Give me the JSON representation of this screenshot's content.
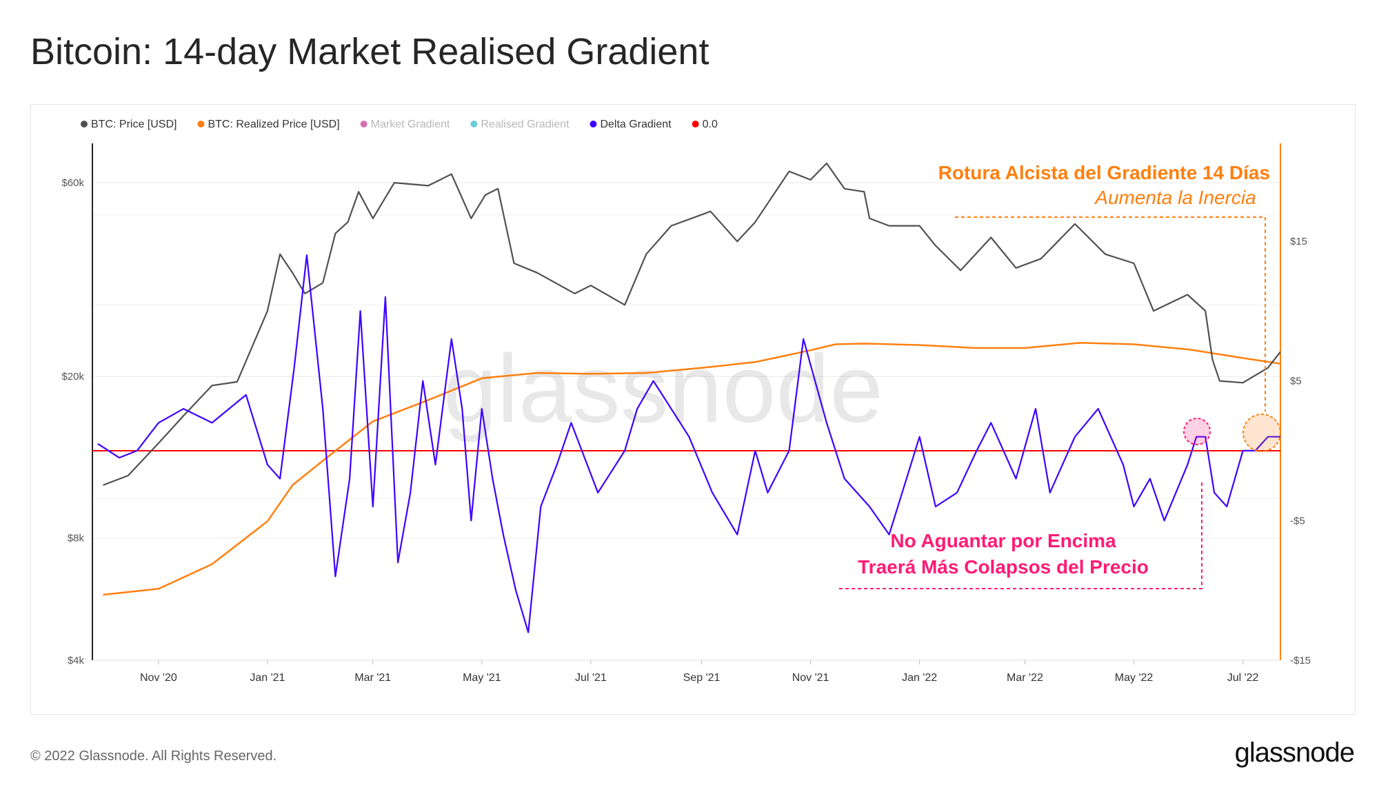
{
  "page": {
    "title": "Bitcoin: 14-day Market Realised Gradient",
    "copyright": "© 2022 Glassnode. All Rights Reserved.",
    "logo": "glassnode",
    "watermark": "glassnode"
  },
  "annotations": {
    "bullish_title": "Rotura Alcista del Gradiente 14 Días",
    "bullish_subtitle": "Aumenta la Inercia",
    "bearish_line1": "No Aguantar por Encima",
    "bearish_line2": "Traerá Más Colapsos del Precio"
  },
  "colors": {
    "price": "#505050",
    "realized": "#ff7f0e",
    "market_gradient": "#d66fae",
    "realised_gradient": "#6ecbd9",
    "delta": "#3d00ff",
    "zero": "#ff0000",
    "annotation_orange": "#ff7f0e",
    "annotation_pink": "#ff1a75"
  },
  "chart_data": {
    "type": "line",
    "title": "Bitcoin: 14-day Market Realised Gradient",
    "legend_position": "top-left",
    "legend": [
      {
        "label": "BTC: Price [USD]",
        "color": "#505050",
        "muted": false
      },
      {
        "label": "BTC: Realized Price [USD]",
        "color": "#ff7f0e",
        "muted": false
      },
      {
        "label": "Market Gradient",
        "color": "#d66fae",
        "muted": true
      },
      {
        "label": "Realised Gradient",
        "color": "#6ecbd9",
        "muted": true
      },
      {
        "label": "Delta Gradient",
        "color": "#3d00ff",
        "muted": false
      },
      {
        "label": "0.0",
        "color": "#ff0000",
        "muted": false
      }
    ],
    "x_ticks": [
      "Nov '20",
      "Jan '21",
      "Mar '21",
      "May '21",
      "Jul '21",
      "Sep '21",
      "Nov '21",
      "Jan '22",
      "Mar '22",
      "May '22",
      "Jul '22"
    ],
    "x_range": [
      "2020-09-25",
      "2022-07-22"
    ],
    "left_axis": {
      "scale": "log",
      "range": [
        4000,
        75000
      ],
      "ticks": [
        {
          "label": "$4k",
          "value": 4000
        },
        {
          "label": "$8k",
          "value": 8000
        },
        {
          "label": "$20k",
          "value": 20000
        },
        {
          "label": "$60k",
          "value": 60000
        }
      ]
    },
    "right_axis": {
      "scale": "linear",
      "range": [
        -15,
        22
      ],
      "ticks": [
        {
          "label": "$15",
          "value": 15
        },
        {
          "label": "$5",
          "value": 5
        },
        {
          "label": "-$5",
          "value": -5
        },
        {
          "label": "-$15",
          "value": -15
        }
      ]
    },
    "grid": true,
    "series": [
      {
        "name": "BTC: Price [USD]",
        "axis": "left",
        "x": [
          "2020-10-01",
          "2020-10-15",
          "2020-11-01",
          "2020-11-15",
          "2020-12-01",
          "2020-12-15",
          "2021-01-01",
          "2021-01-08",
          "2021-01-15",
          "2021-01-22",
          "2021-02-01",
          "2021-02-08",
          "2021-02-15",
          "2021-02-21",
          "2021-03-01",
          "2021-03-13",
          "2021-04-01",
          "2021-04-14",
          "2021-04-25",
          "2021-05-03",
          "2021-05-10",
          "2021-05-19",
          "2021-06-01",
          "2021-06-22",
          "2021-07-01",
          "2021-07-20",
          "2021-08-01",
          "2021-08-15",
          "2021-09-06",
          "2021-09-21",
          "2021-10-01",
          "2021-10-20",
          "2021-11-01",
          "2021-11-10",
          "2021-11-20",
          "2021-12-01",
          "2021-12-04",
          "2021-12-15",
          "2022-01-01",
          "2022-01-10",
          "2022-01-24",
          "2022-02-10",
          "2022-02-24",
          "2022-03-10",
          "2022-03-29",
          "2022-04-15",
          "2022-05-01",
          "2022-05-12",
          "2022-05-31",
          "2022-06-10",
          "2022-06-14",
          "2022-06-18",
          "2022-07-01",
          "2022-07-15",
          "2022-07-22"
        ],
        "values": [
          10800,
          11400,
          13700,
          16000,
          19000,
          19400,
          29000,
          40000,
          36000,
          32000,
          34000,
          45000,
          48000,
          57000,
          49000,
          60000,
          59000,
          63000,
          49000,
          56000,
          58000,
          38000,
          36000,
          32000,
          33500,
          30000,
          40000,
          47000,
          51000,
          43000,
          48000,
          64000,
          61000,
          67000,
          58000,
          57000,
          49000,
          47000,
          47000,
          42000,
          36500,
          44000,
          37000,
          39000,
          47500,
          40000,
          38000,
          29000,
          31800,
          29000,
          22000,
          19500,
          19300,
          21000,
          23000
        ]
      },
      {
        "name": "BTC: Realized Price [USD]",
        "axis": "left",
        "x": [
          "2020-10-01",
          "2020-11-01",
          "2020-12-01",
          "2021-01-01",
          "2021-01-15",
          "2021-02-01",
          "2021-03-01",
          "2021-04-01",
          "2021-05-01",
          "2021-06-01",
          "2021-07-01",
          "2021-08-01",
          "2021-09-01",
          "2021-10-01",
          "2021-11-01",
          "2021-11-15",
          "2021-12-01",
          "2022-01-01",
          "2022-02-01",
          "2022-03-01",
          "2022-04-01",
          "2022-05-01",
          "2022-06-01",
          "2022-07-01",
          "2022-07-22"
        ],
        "values": [
          5800,
          6000,
          6900,
          8800,
          10800,
          12400,
          15500,
          17500,
          19800,
          20400,
          20300,
          20400,
          21000,
          21700,
          23200,
          24000,
          24100,
          23900,
          23500,
          23500,
          24200,
          24000,
          23300,
          22200,
          21500
        ]
      },
      {
        "name": "Delta Gradient",
        "axis": "right",
        "x": [
          "2020-09-28",
          "2020-10-10",
          "2020-10-20",
          "2020-11-01",
          "2020-11-15",
          "2020-12-01",
          "2020-12-20",
          "2021-01-01",
          "2021-01-08",
          "2021-01-16",
          "2021-01-23",
          "2021-02-01",
          "2021-02-08",
          "2021-02-16",
          "2021-02-22",
          "2021-03-01",
          "2021-03-08",
          "2021-03-15",
          "2021-03-22",
          "2021-03-29",
          "2021-04-05",
          "2021-04-14",
          "2021-04-20",
          "2021-04-25",
          "2021-05-01",
          "2021-05-07",
          "2021-05-13",
          "2021-05-20",
          "2021-05-27",
          "2021-06-03",
          "2021-06-12",
          "2021-06-20",
          "2021-06-26",
          "2021-07-05",
          "2021-07-20",
          "2021-07-27",
          "2021-08-05",
          "2021-08-15",
          "2021-08-25",
          "2021-09-07",
          "2021-09-21",
          "2021-10-01",
          "2021-10-08",
          "2021-10-20",
          "2021-10-28",
          "2021-11-10",
          "2021-11-20",
          "2021-12-04",
          "2021-12-15",
          "2022-01-01",
          "2022-01-10",
          "2022-01-22",
          "2022-02-02",
          "2022-02-10",
          "2022-02-24",
          "2022-03-07",
          "2022-03-15",
          "2022-03-29",
          "2022-04-11",
          "2022-04-25",
          "2022-05-01",
          "2022-05-10",
          "2022-05-18",
          "2022-05-31",
          "2022-06-05",
          "2022-06-10",
          "2022-06-15",
          "2022-06-22",
          "2022-07-01",
          "2022-07-08",
          "2022-07-15",
          "2022-07-22"
        ],
        "values": [
          0.5,
          -0.5,
          0,
          2,
          3,
          2,
          4,
          -1,
          -2,
          6,
          14,
          3,
          -9,
          -2,
          10,
          -4,
          11,
          -8,
          -3,
          5,
          -1,
          8,
          3,
          -5,
          3,
          -2,
          -6,
          -10,
          -13,
          -4,
          -1,
          2,
          0,
          -3,
          0,
          3,
          5,
          3,
          1,
          -3,
          -6,
          0,
          -3,
          0,
          8,
          2,
          -2,
          -4,
          -6,
          1,
          -4,
          -3,
          0,
          2,
          -2,
          3,
          -3,
          1,
          3,
          -1,
          -4,
          -2,
          -5,
          -1,
          1,
          1,
          -3,
          -4,
          0,
          0,
          1,
          1
        ]
      }
    ],
    "zero_line": 0.0
  }
}
